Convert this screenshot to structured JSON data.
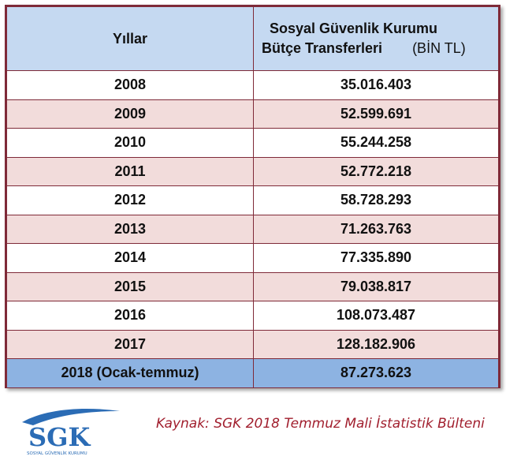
{
  "chart_data": {
    "type": "table",
    "columns": [
      "Yıllar",
      "Sosyal Güvenlik Kurumu Bütçe Transferleri (BİN TL)"
    ],
    "header": {
      "col1": "Yıllar",
      "col2_line1": "Sosyal Güvenlik Kurumu",
      "col2_line2": "Bütçe Transferleri",
      "col2_unit": "(BİN TL)"
    },
    "rows": [
      {
        "year": "2008",
        "value": "35.016.403"
      },
      {
        "year": "2009",
        "value": "52.599.691"
      },
      {
        "year": "2010",
        "value": "55.244.258"
      },
      {
        "year": "2011",
        "value": "52.772.218"
      },
      {
        "year": "2012",
        "value": "58.728.293"
      },
      {
        "year": "2013",
        "value": "71.263.763"
      },
      {
        "year": "2014",
        "value": "77.335.890"
      },
      {
        "year": "2015",
        "value": "79.038.817"
      },
      {
        "year": "2016",
        "value": "108.073.487"
      },
      {
        "year": "2017",
        "value": "128.182.906"
      },
      {
        "year": "2018 (Ocak-temmuz)",
        "value": "87.273.623"
      }
    ],
    "colors": {
      "header_bg": "#c5d9f1",
      "odd_row_bg": "#ffffff",
      "even_row_bg": "#f2dcdb",
      "last_row_bg": "#8db3e2",
      "border": "#7f2a38"
    }
  },
  "footer": {
    "logo_text": "SGK",
    "logo_subtext": "SOSYAL GÜVENLİK KURUMU",
    "source": "Kaynak: SGK 2018 Temmuz Mali İstatistik Bülteni",
    "source_color": "#a11f2e"
  }
}
